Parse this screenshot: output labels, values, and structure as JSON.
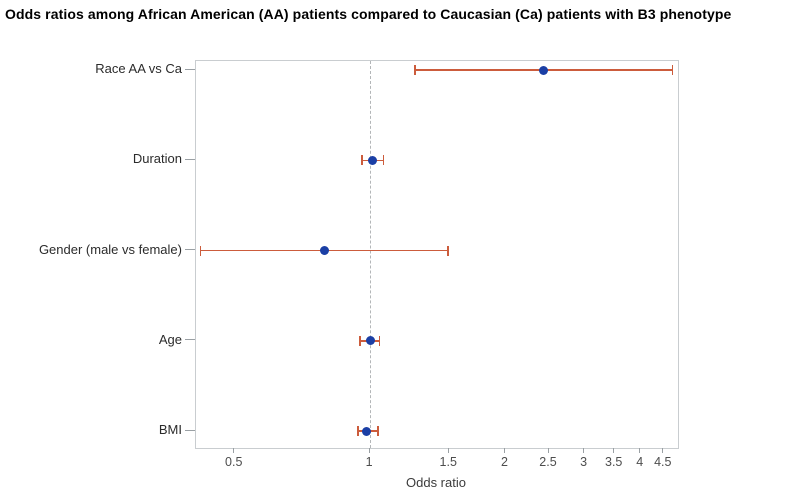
{
  "title": "Odds ratios among African American (AA) patients compared to Caucasian (Ca) patients with B3 phenotype",
  "chart_data": {
    "type": "scatter",
    "subtype": "forest-plot",
    "title": "Odds ratios among African American (AA) patients compared to Caucasian (Ca) patients with B3 phenotype",
    "xlabel": "Odds ratio",
    "ylabel": "",
    "x_scale": "log",
    "xlim": [
      0.41,
      4.84
    ],
    "x_ticks": [
      0.5,
      1,
      1.5,
      2,
      2.5,
      3,
      3.5,
      4,
      4.5
    ],
    "x_tick_labels": [
      "0.5",
      "1",
      "1.5",
      "2",
      "2.5",
      "3",
      "3.5",
      "4",
      "4.5"
    ],
    "reference_line_x": 1,
    "grid": false,
    "legend": "none",
    "rows": [
      {
        "label": "Race AA vs Ca",
        "odds_ratio": 2.43,
        "ci_low": 1.26,
        "ci_high": 4.7
      },
      {
        "label": "Duration",
        "odds_ratio": 1.01,
        "ci_low": 0.96,
        "ci_high": 1.07
      },
      {
        "label": "Gender (male vs female)",
        "odds_ratio": 0.79,
        "ci_low": 0.42,
        "ci_high": 1.49
      },
      {
        "label": "Age",
        "odds_ratio": 1.0,
        "ci_low": 0.95,
        "ci_high": 1.05
      },
      {
        "label": "BMI",
        "odds_ratio": 0.98,
        "ci_low": 0.94,
        "ci_high": 1.04
      }
    ],
    "colors": {
      "point": "#1b3fa5",
      "error_bar": "#cc5c3c",
      "reference_line": "#b3b6b8",
      "plot_border": "#c9cdd0",
      "tick_mark": "#9aa0a4",
      "tick_text": "#4d4d4d",
      "label_text": "#2b2b2b",
      "title_text": "#000000",
      "background": "#ffffff"
    }
  }
}
